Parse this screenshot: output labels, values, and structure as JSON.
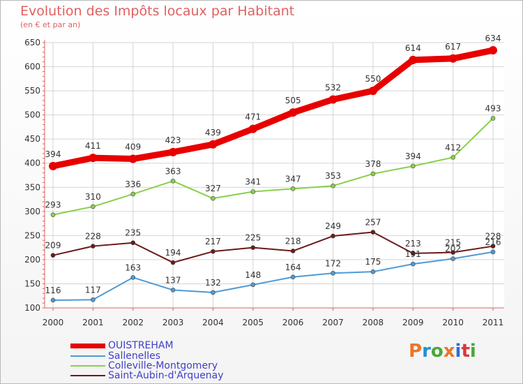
{
  "title": "Evolution des Impôts locaux par Habitant",
  "subtitle": "(en € et par an)",
  "logo": {
    "text": "Proxiti",
    "colors": [
      "#e8772a",
      "#1f8fd6",
      "#49a83a",
      "#e8772a",
      "#2d6fd6",
      "#d63b3b",
      "#49a83a"
    ]
  },
  "chart_data": {
    "type": "line",
    "x": [
      "2000",
      "2001",
      "2002",
      "2003",
      "2004",
      "2005",
      "2006",
      "2007",
      "2008",
      "2009",
      "2010",
      "2011"
    ],
    "ylim": [
      100,
      650
    ],
    "yticks": [
      100,
      150,
      200,
      250,
      300,
      350,
      400,
      450,
      500,
      550,
      600,
      650
    ],
    "grid": true,
    "series": [
      {
        "name": "OUISTREHAM",
        "color": "#e80000",
        "values": [
          394,
          411,
          409,
          423,
          439,
          471,
          505,
          532,
          550,
          614,
          617,
          634
        ]
      },
      {
        "name": "Sallenelles",
        "color": "#4f9ad4",
        "values": [
          116,
          117,
          163,
          137,
          132,
          148,
          164,
          172,
          175,
          191,
          202,
          216
        ]
      },
      {
        "name": "Colleville-Montgomery",
        "color": "#88d04a",
        "values": [
          293,
          310,
          336,
          363,
          327,
          341,
          347,
          353,
          378,
          394,
          412,
          493
        ]
      },
      {
        "name": "Saint-Aubin-d'Arquenay",
        "color": "#6b1a1a",
        "values": [
          209,
          228,
          235,
          194,
          217,
          225,
          218,
          249,
          257,
          213,
          215,
          228
        ]
      }
    ]
  }
}
